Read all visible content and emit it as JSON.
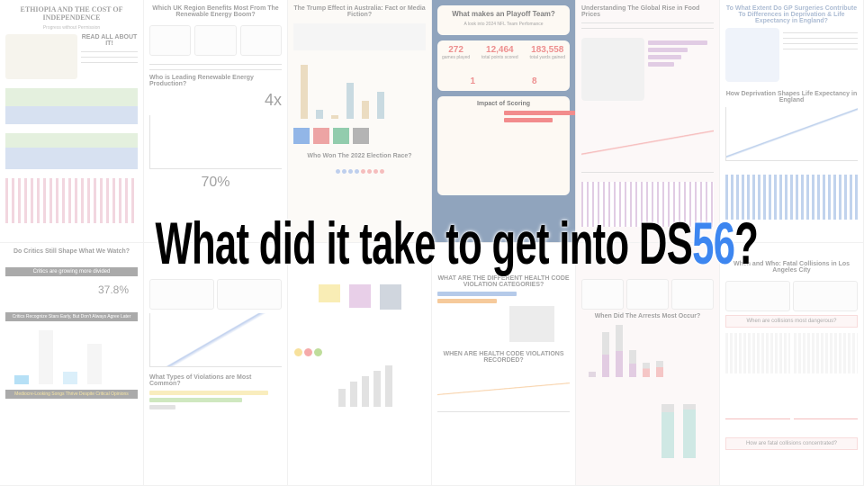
{
  "headline": {
    "main": "What did it take to get into DS",
    "accent": "56",
    "end": "?",
    "accent_color": "#3d86f0"
  },
  "tiles": [
    {
      "title": "ETHIOPIA AND THE COST OF INDEPENDENCE",
      "subtitle": "Progress without Permission",
      "section": "READ ALL ABOUT IT!"
    },
    {
      "title": "Which UK Region Benefits Most From The Renewable Energy Boom?",
      "section": "Who is Leading Renewable Energy Production?",
      "kpi": "4x",
      "kpi2": "70%"
    },
    {
      "title": "The Trump Effect in Australia: Fact or Media Fiction?",
      "section": "Who Won The 2022 Election Race?"
    },
    {
      "title": "What makes an Playoff Team?",
      "subtitle": "A look into 2024 NFL Team Perfomance",
      "stats": [
        {
          "value": "272",
          "label": "games played"
        },
        {
          "value": "12,464",
          "label": "total points scored"
        },
        {
          "value": "183,558",
          "label": "total yards gained"
        }
      ],
      "section": "Impact of Scoring",
      "result_values": [
        "1",
        "8"
      ]
    },
    {
      "title": "Understanding The Global Rise in Food Prices"
    },
    {
      "title": "To What Extent Do GP Surgeries Contribute To Differences in Deprivation & Life Expectancy in England?",
      "section": "How Deprivation Shapes Life Expectancy in England"
    },
    {
      "title": "Do Critics Still Shape What We Watch?",
      "section": "Critics are growing more divided",
      "kpi": "37.8%",
      "section2": "Critics Recognize Stars Early, But Don't Always Agree Later",
      "section3": "Mediocre-Looking Songs Thrive Despite Critical Opinions"
    },
    {
      "title": "What Types of Violations are Most Common?"
    },
    {
      "title": ""
    },
    {
      "title": "WHAT ARE THE DIFFERENT HEALTH CODE VIOLATION CATEGORIES?",
      "section": "WHEN ARE HEALTH CODE VIOLATIONS RECORDED?"
    },
    {
      "title": "When Did The Arrests Most Occur?"
    },
    {
      "title": "When and Who: Fatal Collisions in Los Angeles City",
      "section": "When are collisions most dangerous?",
      "section2": "How are fatal collisions concentrated?"
    }
  ]
}
